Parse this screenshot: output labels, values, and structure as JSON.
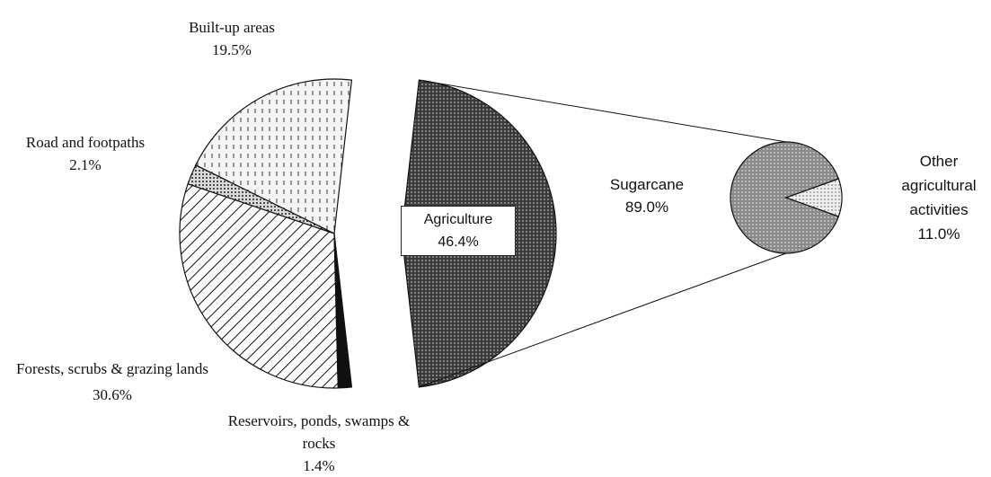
{
  "chart_data": {
    "type": "pie_of_pie",
    "categories": [
      "Built-up areas",
      "Road and footpaths",
      "Forests, scrubs & grazing lands",
      "Reservoirs, ponds, swamps & rocks",
      "Agriculture"
    ],
    "values": [
      19.5,
      2.1,
      30.6,
      1.4,
      46.4
    ],
    "value_labels": [
      "19.5%",
      "2.1%",
      "30.6%",
      "1.4%",
      "46.4%"
    ],
    "colors": [
      "#f4f4f4",
      "#d9d9d9",
      "#ffffff",
      "#222222",
      "#555555"
    ],
    "secondary": {
      "categories": [
        "Sugarcane",
        "Other agricultural activities"
      ],
      "values": [
        89.0,
        11.0
      ],
      "value_labels": [
        "89.0%",
        "11.0%"
      ],
      "colors": [
        "#9a9a9a",
        "#eeeeee"
      ]
    }
  }
}
